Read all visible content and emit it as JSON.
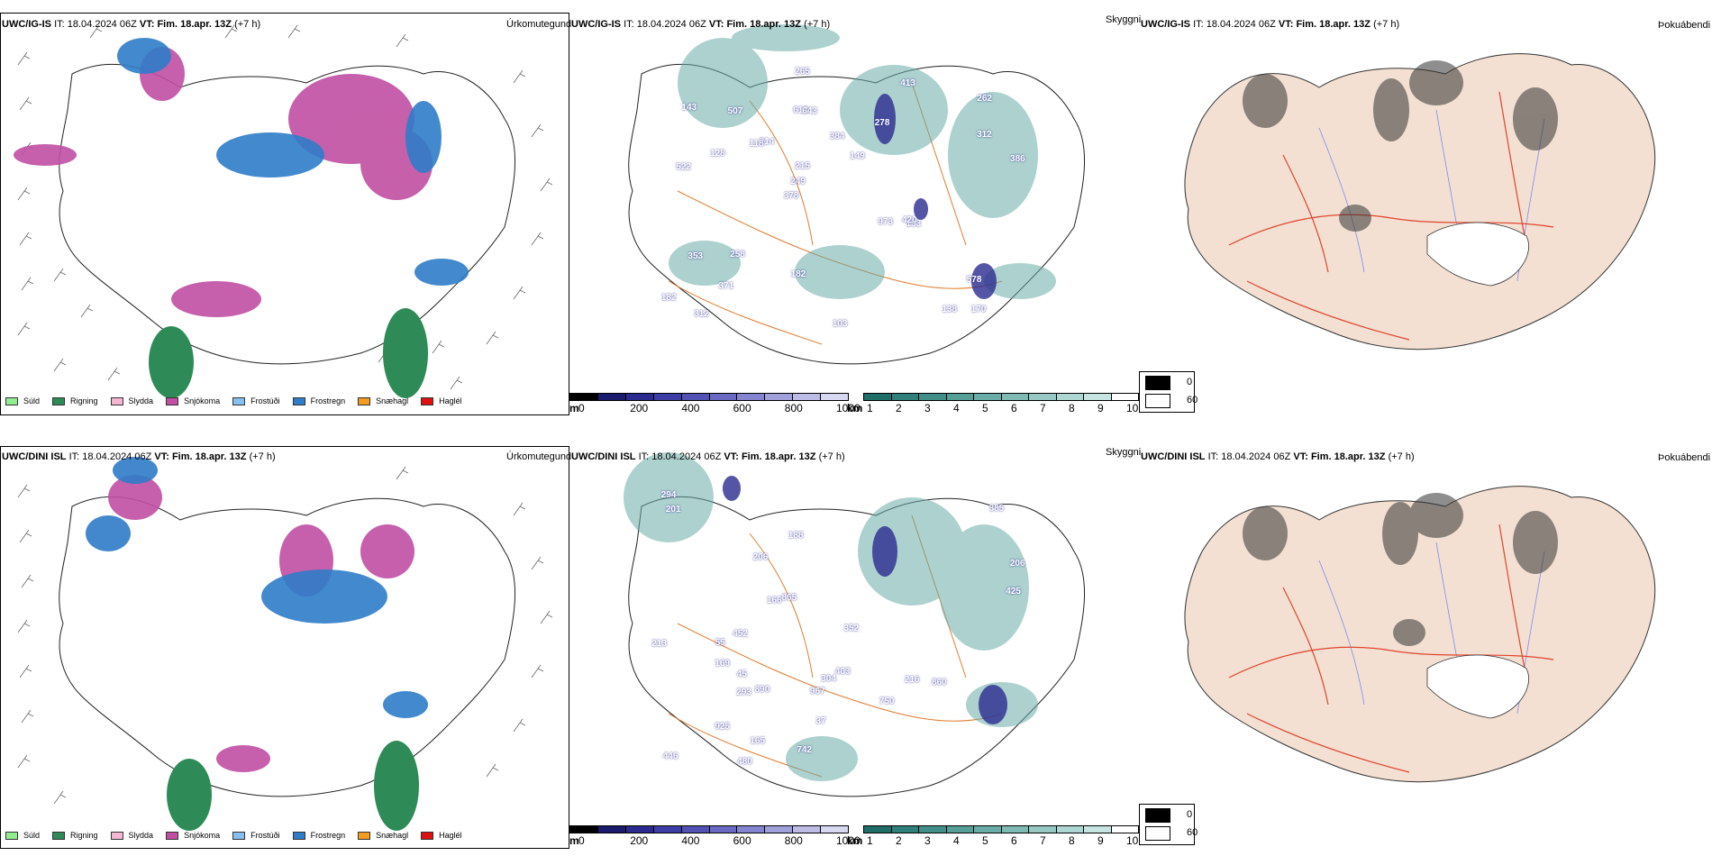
{
  "rows": [
    {
      "model": "UWC/IG-IS",
      "it_label": "IT:",
      "it_value": "18.04.2024 06Z",
      "vt_label": "VT:",
      "vt_value": "Fim. 18.apr. 13Z",
      "lead": "(+7 h)"
    },
    {
      "model": "UWC/DINI ISL",
      "it_label": "IT:",
      "it_value": "18.04.2024 06Z",
      "vt_label": "VT:",
      "vt_value": "Fim. 18.apr. 13Z",
      "lead": "(+7 h)"
    }
  ],
  "panel_titles": {
    "precip_type": "Úrkomutegund",
    "visibility": "Skyggni",
    "fog": "Þokuábendi"
  },
  "precip_legend": [
    {
      "label": "Súld",
      "color": "#90ee90"
    },
    {
      "label": "Rigning",
      "color": "#2e8b57"
    },
    {
      "label": "Slydda",
      "color": "#f4b6d2"
    },
    {
      "label": "Snjókoma",
      "color": "#c04fa3"
    },
    {
      "label": "Frostúði",
      "color": "#87bff0"
    },
    {
      "label": "Frostregn",
      "color": "#2f7cc8"
    },
    {
      "label": "Snæhagl",
      "color": "#f39c20"
    },
    {
      "label": "Haglél",
      "color": "#e01010"
    }
  ],
  "cloud_base_bar": {
    "unit": "m",
    "ticks": [
      "0",
      "200",
      "400",
      "600",
      "800",
      "1000"
    ],
    "colors": [
      "#000000",
      "#1b1b6e",
      "#2b2b8f",
      "#3d3da6",
      "#5252b5",
      "#6a6ac2",
      "#8585cf",
      "#a0a0db",
      "#bcbce6",
      "#d8d8f2"
    ]
  },
  "visibility_bar": {
    "unit": "km",
    "ticks": [
      "1",
      "2",
      "3",
      "4",
      "5",
      "6",
      "7",
      "8",
      "9",
      "10"
    ],
    "colors": [
      "#1f6f68",
      "#2f807a",
      "#428f89",
      "#569e98",
      "#6aaca7",
      "#80bab5",
      "#97c8c4",
      "#aed6d2",
      "#c6e4e1",
      "#ffffff"
    ]
  },
  "fog_legend": [
    {
      "label": "0",
      "color": "#000000"
    },
    {
      "label": "60",
      "color": "#ffffff"
    }
  ],
  "map_labels_top": [
    "170",
    "522",
    "262",
    "378",
    "278",
    "312",
    "612",
    "384",
    "353",
    "214",
    "182",
    "371",
    "643",
    "149",
    "193",
    "143",
    "265",
    "386",
    "973",
    "312",
    "249",
    "182",
    "215",
    "507",
    "413",
    "258",
    "138",
    "578",
    "420",
    "103",
    "118",
    "128"
  ],
  "map_labels_bottom": [
    "201",
    "294",
    "213",
    "385",
    "206",
    "750",
    "188",
    "890",
    "446",
    "216",
    "293",
    "352",
    "480",
    "169",
    "304",
    "166",
    "967",
    "925",
    "206",
    "865",
    "425",
    "37",
    "165",
    "452",
    "55",
    "403",
    "45",
    "860",
    "742"
  ]
}
